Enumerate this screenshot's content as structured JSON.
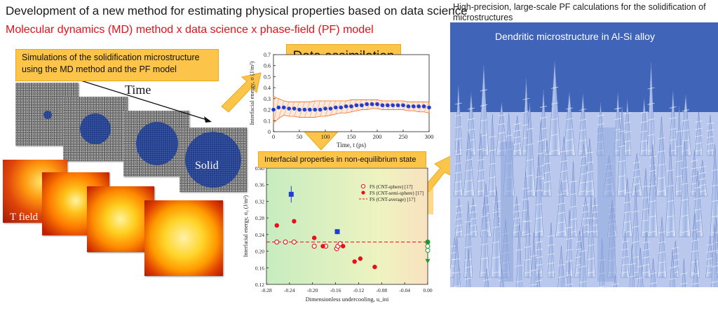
{
  "header": {
    "title": "Development of a new method for estimating physical properties based on data science",
    "subtitle": "Molecular dynamics (MD) method x data science x phase-field (PF) model"
  },
  "right_panel": {
    "caption": "High-precision, large-scale PF calculations for the solidification of microstructures",
    "image_label": "Dendritic microstructure in Al-Si alloy"
  },
  "simulation": {
    "callout": "Simulations of the solidification microstructure using the MD method and the PF model",
    "time_label": "Time",
    "solid_label": "Solid",
    "tfield_label": "T field"
  },
  "data_assimilation": {
    "label": "Data assimilation"
  },
  "interfacial_callout": {
    "label": "Interfacial properties in non-equilibrium state"
  },
  "colors": {
    "callout": "#fcc54a",
    "title_red": "#e8101a",
    "blue": "#1c3a8c",
    "red": "#e8101a",
    "sky": "#3f64b8"
  },
  "chart_data": [
    {
      "type": "scatter",
      "title": "",
      "xlabel": "Time, t (ps)",
      "ylabel": "Interfacial energy, σ (J/m²)",
      "xlim": [
        0,
        300
      ],
      "ylim": [
        0,
        0.7
      ],
      "xticks": [
        0,
        50,
        100,
        150,
        200,
        250,
        300
      ],
      "yticks": [
        0,
        0.1,
        0.2,
        0.3,
        0.4,
        0.5,
        0.6,
        0.7
      ],
      "series": [
        {
          "x": [
            0,
            10,
            20,
            30,
            40,
            50,
            60,
            70,
            80,
            90,
            100,
            110,
            120,
            130,
            140,
            150,
            160,
            170,
            180,
            190,
            200,
            210,
            220,
            230,
            240,
            250,
            260,
            270,
            280,
            290,
            300
          ],
          "y": [
            0.2,
            0.22,
            0.22,
            0.21,
            0.21,
            0.2,
            0.2,
            0.2,
            0.2,
            0.2,
            0.21,
            0.21,
            0.22,
            0.22,
            0.23,
            0.23,
            0.24,
            0.24,
            0.25,
            0.25,
            0.25,
            0.24,
            0.24,
            0.24,
            0.24,
            0.24,
            0.23,
            0.23,
            0.23,
            0.23,
            0.22
          ]
        }
      ],
      "band": {
        "upper": [
          0.32,
          0.3,
          0.28,
          0.27,
          0.27,
          0.27,
          0.27,
          0.27,
          0.28,
          0.28,
          0.28,
          0.28,
          0.28,
          0.28,
          0.28,
          0.29,
          0.29,
          0.29,
          0.29,
          0.29,
          0.29,
          0.28,
          0.28,
          0.28,
          0.28,
          0.28,
          0.27,
          0.27,
          0.27,
          0.27,
          0.27
        ],
        "lower": [
          0.08,
          0.12,
          0.15,
          0.14,
          0.14,
          0.13,
          0.13,
          0.13,
          0.13,
          0.14,
          0.14,
          0.15,
          0.16,
          0.17,
          0.17,
          0.18,
          0.19,
          0.2,
          0.2,
          0.21,
          0.21,
          0.2,
          0.2,
          0.2,
          0.2,
          0.2,
          0.19,
          0.19,
          0.18,
          0.18,
          0.17
        ]
      }
    },
    {
      "type": "scatter",
      "title": "",
      "xlabel": "Dimensionless undercooling, u_ini",
      "ylabel": "Interfacial energy, σ₀ (J/m²)",
      "xlim": [
        -0.28,
        0.0
      ],
      "ylim": [
        0.12,
        0.4
      ],
      "xticks": [
        "-0.28",
        "-0.24",
        "-0.20",
        "-0.16",
        "-0.12",
        "-0.08",
        "-0.04",
        "0.00"
      ],
      "yticks": [
        "0.12",
        "0.16",
        "0.20",
        "0.24",
        "0.28",
        "0.32",
        "0.36",
        "0.40"
      ],
      "legend": [
        "FS (CNT-sphere) [17]",
        "FS (CNT-semi-sphere) [17]",
        "FS (CNT-average) [17]"
      ],
      "reference_line": 0.222,
      "series": [
        {
          "name": "FS (CNT-sphere) [17]",
          "x": [
            -0.262,
            -0.247,
            -0.232,
            -0.197,
            -0.177,
            -0.158,
            -0.156,
            -0.152
          ],
          "y": [
            0.222,
            0.222,
            0.222,
            0.212,
            0.212,
            0.206,
            0.212,
            0.218
          ]
        },
        {
          "name": "FS (CNT-semi-sphere) [17]",
          "x": [
            -0.262,
            -0.232,
            -0.197,
            -0.182,
            -0.147,
            -0.127,
            -0.117,
            -0.092
          ],
          "y": [
            0.262,
            0.272,
            0.232,
            0.212,
            0.212,
            0.175,
            0.182,
            0.162
          ]
        },
        {
          "x": [
            -0.237,
            -0.157
          ],
          "y": [
            0.337,
            0.247
          ],
          "err": [
            0.02,
            0.006
          ]
        },
        {
          "x": [
            0.0,
            0.0,
            0.0,
            0.0
          ],
          "y": [
            0.222,
            0.212,
            0.202,
            0.176
          ]
        }
      ]
    }
  ]
}
